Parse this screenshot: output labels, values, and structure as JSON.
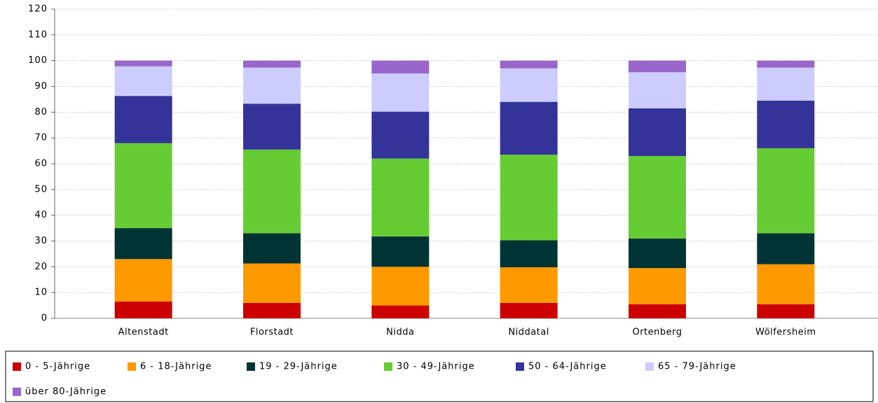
{
  "chart_data": {
    "type": "stacked_bar",
    "categories": [
      "Altenstadt",
      "Florstadt",
      "Nidda",
      "Niddatal",
      "Ortenberg",
      "Wölfersheim"
    ],
    "series": [
      {
        "name": "0 - 5-Jährige",
        "color": "#cc0000",
        "values": [
          6.5,
          6,
          5,
          6,
          5.5,
          5.5
        ]
      },
      {
        "name": "6 - 18-Jährige",
        "color": "#ff9900",
        "values": [
          16.5,
          15.3,
          15,
          13.8,
          14,
          15.5
        ]
      },
      {
        "name": "19 - 29-Jährige",
        "color": "#003333",
        "values": [
          12,
          11.7,
          11.8,
          10.5,
          11.5,
          12
        ]
      },
      {
        "name": "30 - 49-Jährige",
        "color": "#66cc33",
        "values": [
          33,
          32.5,
          30.2,
          33.2,
          32,
          33
        ]
      },
      {
        "name": "50 - 64-Jährige",
        "color": "#333399",
        "values": [
          18.3,
          17.8,
          18.2,
          20.5,
          18.5,
          18.5
        ]
      },
      {
        "name": "65 - 79-Jährige",
        "color": "#ccccff",
        "values": [
          11.5,
          14,
          14.8,
          13,
          14,
          12.8
        ]
      },
      {
        "name": "über 80-Jährige",
        "color": "#9966cc",
        "values": [
          2.2,
          2.7,
          5,
          3,
          4.5,
          2.7
        ]
      }
    ],
    "ylim": [
      0,
      120
    ],
    "yticks": [
      0,
      10,
      20,
      30,
      40,
      50,
      60,
      70,
      80,
      90,
      100,
      110,
      120
    ],
    "grid": true,
    "legend": "bottom"
  }
}
